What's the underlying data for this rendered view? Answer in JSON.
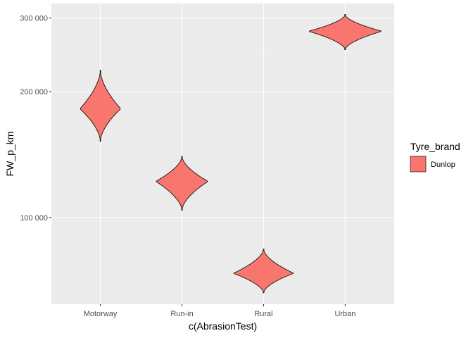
{
  "chart_data": {
    "type": "violin",
    "x_categories": [
      "Motorway",
      "Run-in",
      "Rural",
      "Urban"
    ],
    "xlabel": "c(AbrasionTest)",
    "ylabel": "FW_p_km",
    "y_scale": "log",
    "ylim": [
      62000,
      325000
    ],
    "y_ticks": [
      100000,
      200000,
      300000
    ],
    "y_tick_labels": [
      "100 000",
      "200 000",
      "300 000"
    ],
    "y_minor_ticks": [
      70000,
      150000,
      250000
    ],
    "grid": true,
    "legend": {
      "title": "Tyre_brand",
      "position": "right",
      "entries": [
        {
          "label": "Dunlop",
          "color": "#F8766D"
        }
      ]
    },
    "series": [
      {
        "name": "Dunlop",
        "color": "#F8766D",
        "violins": [
          {
            "category": "Motorway",
            "min": 152000,
            "max": 225000,
            "mode": 182000,
            "max_half_width": 0.25
          },
          {
            "category": "Run-in",
            "min": 104000,
            "max": 140000,
            "mode": 122000,
            "max_half_width": 0.32
          },
          {
            "category": "Rural",
            "min": 66000,
            "max": 84000,
            "mode": 73500,
            "max_half_width": 0.37
          },
          {
            "category": "Urban",
            "min": 252000,
            "max": 306000,
            "mode": 279000,
            "max_half_width": 0.45
          }
        ]
      }
    ]
  }
}
